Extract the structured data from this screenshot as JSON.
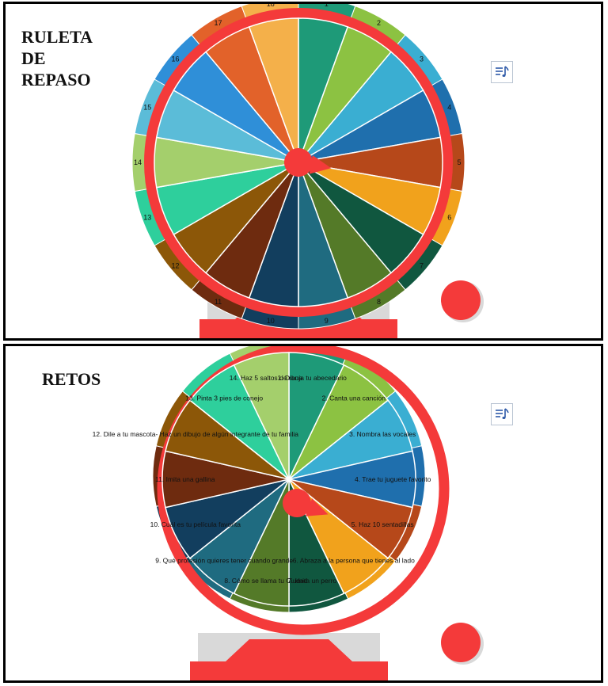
{
  "panel1": {
    "title": "RULETA\nDE\nREPASO",
    "outer_labels": [
      "1",
      "2",
      "3",
      "4",
      "5",
      "6",
      "7",
      "8",
      "9",
      "10",
      "11",
      "12",
      "13",
      "14",
      "15",
      "16",
      "17",
      "18"
    ]
  },
  "panel2": {
    "title": "RETOS",
    "labels": [
      "1. Dibuja tu abecedario",
      "2. Canta una canción",
      "3. Nombra las vocales",
      "4. Trae tu juguete favorito",
      "5. Haz 10 sentadillas",
      "6. Abraza a la persona que tienes al lado",
      "7. Imita un perro",
      "8. Cómo se llama tu Ciudad",
      "9. Qué profesión quieres tener cuando grande",
      "10. Cuál es tu película favorita",
      "11. Imita una gallina",
      "12. Dile a tu mascota- Haz un dibujo de algún integrante de tu familia",
      "13. Pinta 3 pies de conejo",
      "14. Haz 5 saltos de rana"
    ]
  },
  "icons": {
    "music": "music-playlist-icon",
    "spin": "spin-circle-icon"
  },
  "colors": {
    "ring": "#f43a3a",
    "segments": [
      "#1e9a78",
      "#8cc242",
      "#3aaed2",
      "#1f6fad",
      "#b6481a",
      "#f1a21c",
      "#10573f",
      "#547a28",
      "#1f6b80",
      "#123e5e",
      "#6e2b0f",
      "#8c5708",
      "#2ecf9c",
      "#a4cf6c",
      "#5bbcd8",
      "#2f8fd8",
      "#e2622a",
      "#f4b04a"
    ]
  }
}
